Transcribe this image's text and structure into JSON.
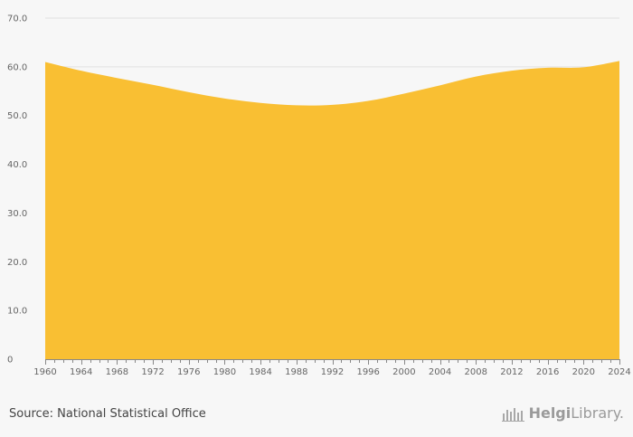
{
  "chart_data": {
    "type": "area",
    "x": [
      1960,
      1964,
      1968,
      1972,
      1976,
      1980,
      1984,
      1988,
      1992,
      1996,
      2000,
      2004,
      2008,
      2012,
      2016,
      2020,
      2024
    ],
    "values": [
      61.0,
      59.2,
      57.7,
      56.3,
      54.8,
      53.5,
      52.6,
      52.1,
      52.2,
      53.0,
      54.5,
      56.2,
      58.0,
      59.2,
      59.8,
      59.9,
      61.2
    ],
    "ylim": [
      0,
      70
    ],
    "y_ticks": [
      "0",
      "10.0",
      "20.0",
      "30.0",
      "40.0",
      "50.0",
      "60.0",
      "70.0"
    ],
    "x_ticks": [
      "1960",
      "1964",
      "1968",
      "1972",
      "1976",
      "1980",
      "1984",
      "1988",
      "1992",
      "1996",
      "2000",
      "2004",
      "2008",
      "2012",
      "2016",
      "2020",
      "2024"
    ],
    "grid": true,
    "colors": {
      "area": "#f9bf33",
      "grid": "#e2e2e2",
      "axis": "#888888"
    }
  },
  "footer": {
    "source": "Source: National Statistical Office",
    "brand_bold": "Helgi",
    "brand_light": "Library."
  }
}
